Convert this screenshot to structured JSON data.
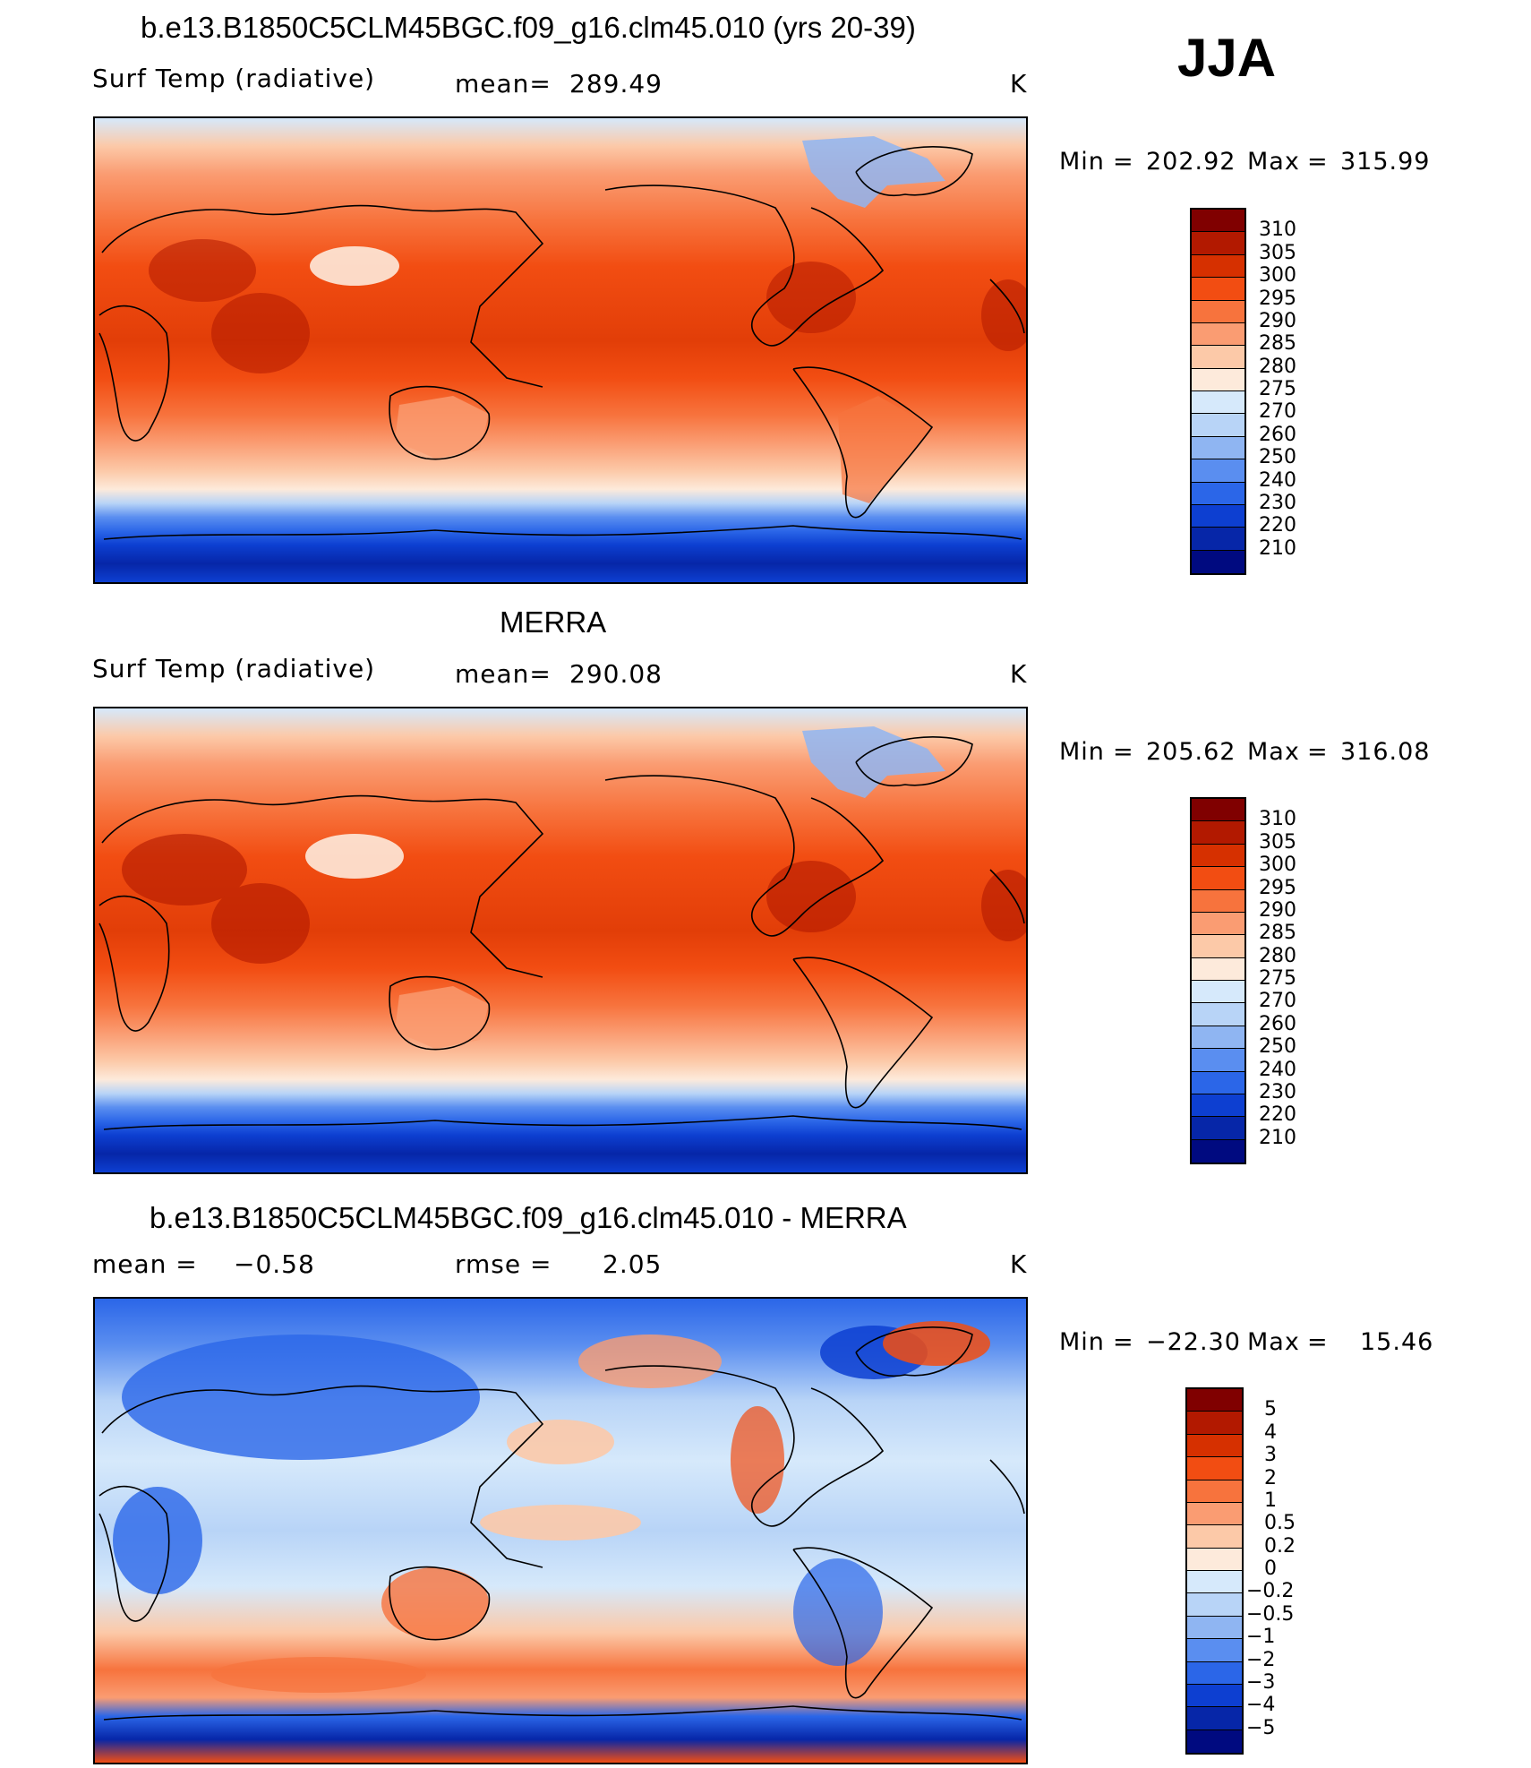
{
  "season": "JJA",
  "units": "K",
  "panels": [
    {
      "title": "b.e13.B1850C5CLM45BGC.f09_g16.clm45.010 (yrs 20-39)",
      "variable": "Surf Temp (radiative)",
      "stat_label": "mean=",
      "stat_value": "289.49",
      "units": "K",
      "min_label": "Min",
      "min_value": "202.92",
      "max_label": "Max",
      "max_value": "315.99",
      "colorbar_labels": [
        "310",
        "305",
        "300",
        "295",
        "290",
        "285",
        "280",
        "275",
        "270",
        "260",
        "250",
        "240",
        "230",
        "220",
        "210"
      ]
    },
    {
      "title": "MERRA",
      "variable": "Surf Temp (radiative)",
      "stat_label": "mean=",
      "stat_value": "290.08",
      "units": "K",
      "min_label": "Min",
      "min_value": "205.62",
      "max_label": "Max",
      "max_value": "316.08",
      "colorbar_labels": [
        "310",
        "305",
        "300",
        "295",
        "290",
        "285",
        "280",
        "275",
        "270",
        "260",
        "250",
        "240",
        "230",
        "220",
        "210"
      ]
    },
    {
      "title": "b.e13.B1850C5CLM45BGC.f09_g16.clm45.010 - MERRA",
      "mean_label": "mean =",
      "mean_value": "−0.58",
      "rmse_label": "rmse =",
      "rmse_value": "2.05",
      "units": "K",
      "min_label": "Min",
      "min_value": "−22.30",
      "max_label": "Max",
      "max_value": "15.46",
      "colorbar_labels": [
        "5",
        "4",
        "3",
        "2",
        "1",
        "0.5",
        "0.2",
        "0",
        "−0.2",
        "−0.5",
        "−1",
        "−2",
        "−3",
        "−4",
        "−5"
      ]
    }
  ],
  "colors": {
    "abs_scale": [
      "#800000",
      "#b21900",
      "#d63000",
      "#f24d12",
      "#f7733d",
      "#fa9c72",
      "#fcc9a8",
      "#fdeadb",
      "#d6e9fb",
      "#b8d4f7",
      "#8fb5f2",
      "#5a8ef0",
      "#2b66e8",
      "#0d3fd1",
      "#0626a8",
      "#000a80"
    ],
    "diff_scale": [
      "#800000",
      "#b21900",
      "#d63000",
      "#f24d12",
      "#f7733d",
      "#fa9c72",
      "#fcc9a8",
      "#fdeadb",
      "#d6e9fb",
      "#b8d4f7",
      "#8fb5f2",
      "#5a8ef0",
      "#2b66e8",
      "#0d3fd1",
      "#0626a8",
      "#000a80"
    ]
  }
}
